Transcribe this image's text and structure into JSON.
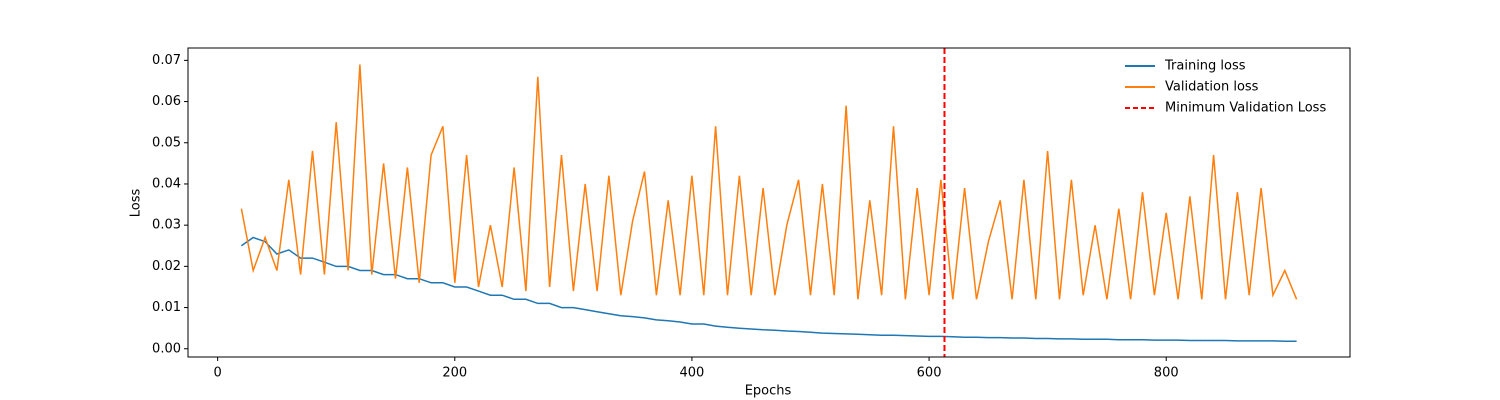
{
  "chart_data": {
    "type": "line",
    "xlabel": "Epochs",
    "ylabel": "Loss",
    "x": [
      20,
      30,
      40,
      50,
      60,
      70,
      80,
      90,
      100,
      110,
      120,
      130,
      140,
      150,
      160,
      170,
      180,
      190,
      200,
      210,
      220,
      230,
      240,
      250,
      260,
      270,
      280,
      290,
      300,
      310,
      320,
      330,
      340,
      350,
      360,
      370,
      380,
      390,
      400,
      410,
      420,
      430,
      440,
      450,
      460,
      470,
      480,
      490,
      500,
      510,
      520,
      530,
      540,
      550,
      560,
      570,
      580,
      590,
      600,
      610,
      620,
      630,
      640,
      650,
      660,
      670,
      680,
      690,
      700,
      710,
      720,
      730,
      740,
      750,
      760,
      770,
      780,
      790,
      800,
      810,
      820,
      830,
      840,
      850,
      860,
      870,
      880,
      890,
      900,
      910
    ],
    "series": [
      {
        "name": "Training loss",
        "color": "#1f77b4",
        "values": [
          0.025,
          0.027,
          0.026,
          0.023,
          0.024,
          0.022,
          0.022,
          0.021,
          0.02,
          0.02,
          0.019,
          0.019,
          0.018,
          0.018,
          0.017,
          0.017,
          0.016,
          0.016,
          0.015,
          0.015,
          0.014,
          0.013,
          0.013,
          0.012,
          0.012,
          0.011,
          0.011,
          0.01,
          0.01,
          0.0095,
          0.009,
          0.0085,
          0.008,
          0.0078,
          0.0075,
          0.007,
          0.0068,
          0.0065,
          0.006,
          0.006,
          0.0055,
          0.0052,
          0.005,
          0.0048,
          0.0046,
          0.0045,
          0.0043,
          0.0042,
          0.004,
          0.0038,
          0.0037,
          0.0036,
          0.0035,
          0.0034,
          0.0033,
          0.0033,
          0.0032,
          0.0031,
          0.003,
          0.003,
          0.0029,
          0.0028,
          0.0028,
          0.0027,
          0.0027,
          0.0026,
          0.0026,
          0.0025,
          0.0025,
          0.0024,
          0.0024,
          0.0023,
          0.0023,
          0.0023,
          0.0022,
          0.0022,
          0.0022,
          0.0021,
          0.0021,
          0.0021,
          0.002,
          0.002,
          0.002,
          0.002,
          0.0019,
          0.0019,
          0.0019,
          0.0019,
          0.0018,
          0.0018
        ]
      },
      {
        "name": "Validation loss",
        "color": "#ff7f0e",
        "values": [
          0.034,
          0.019,
          0.027,
          0.019,
          0.041,
          0.018,
          0.048,
          0.018,
          0.055,
          0.019,
          0.069,
          0.018,
          0.045,
          0.017,
          0.044,
          0.016,
          0.047,
          0.054,
          0.016,
          0.047,
          0.015,
          0.03,
          0.015,
          0.044,
          0.014,
          0.066,
          0.015,
          0.047,
          0.014,
          0.04,
          0.014,
          0.042,
          0.013,
          0.031,
          0.043,
          0.013,
          0.036,
          0.013,
          0.042,
          0.013,
          0.054,
          0.013,
          0.042,
          0.013,
          0.039,
          0.013,
          0.03,
          0.041,
          0.013,
          0.04,
          0.013,
          0.059,
          0.012,
          0.036,
          0.013,
          0.054,
          0.012,
          0.039,
          0.013,
          0.041,
          0.012,
          0.039,
          0.012,
          0.026,
          0.036,
          0.012,
          0.041,
          0.012,
          0.048,
          0.012,
          0.041,
          0.013,
          0.03,
          0.012,
          0.034,
          0.012,
          0.038,
          0.013,
          0.033,
          0.012,
          0.037,
          0.012,
          0.047,
          0.012,
          0.038,
          0.013,
          0.039,
          0.013,
          0.019,
          0.012
        ]
      }
    ],
    "vline": {
      "name": "Minimum Validation Loss",
      "x": 613,
      "color": "#ff0000"
    },
    "xlim": [
      -25,
      955
    ],
    "xticks": [
      0,
      200,
      400,
      600,
      800
    ],
    "ylim": [
      -0.002,
      0.073
    ],
    "yticks": [
      {
        "value": 0,
        "label": "0.00"
      },
      {
        "value": 0.01,
        "label": "0.01"
      },
      {
        "value": 0.02,
        "label": "0.02"
      },
      {
        "value": 0.03,
        "label": "0.03"
      },
      {
        "value": 0.04,
        "label": "0.04"
      },
      {
        "value": 0.05,
        "label": "0.05"
      },
      {
        "value": 0.06,
        "label": "0.06"
      },
      {
        "value": 0.07,
        "label": "0.07"
      }
    ],
    "legend": "upper right"
  }
}
